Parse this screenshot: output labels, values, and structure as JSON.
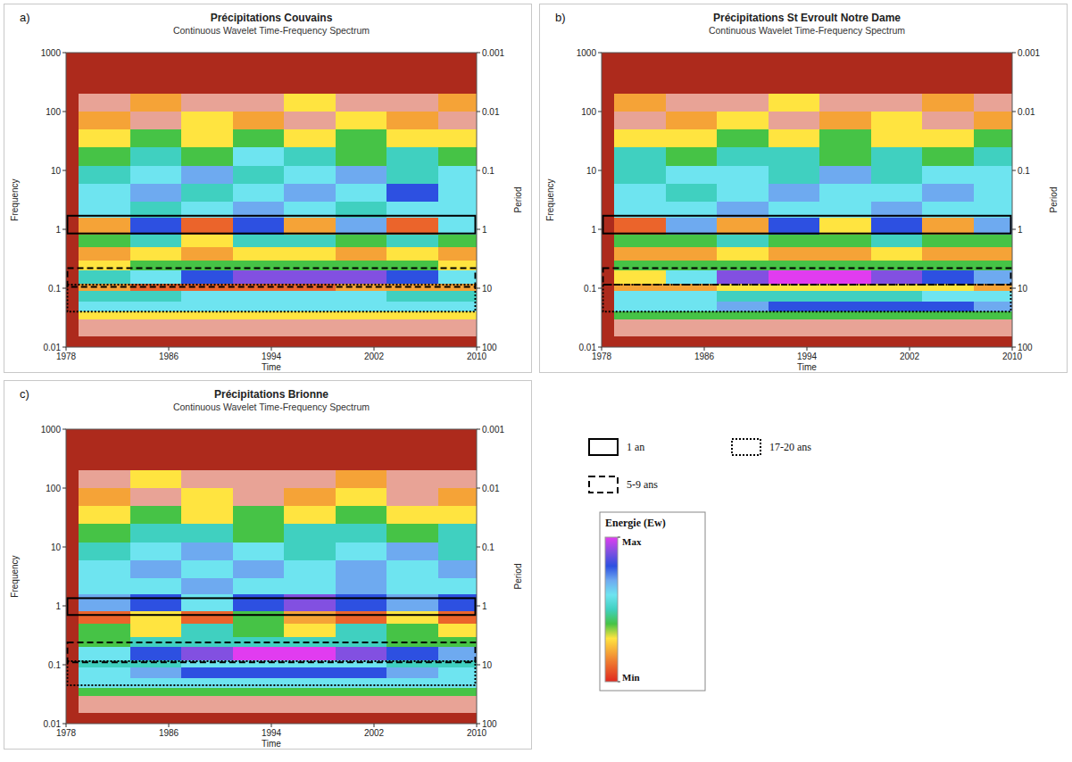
{
  "chart_data": [
    {
      "type": "heatmap",
      "panel_label": "a)",
      "title": "Précipitations Couvains",
      "subtitle": "Continuous Wavelet Time-Frequency Spectrum",
      "x_label": "Time",
      "y_label": "Frequency",
      "y2_label": "Period",
      "log": "y",
      "xlim": [
        1978,
        2010
      ],
      "xticks": [
        1978,
        1986,
        1994,
        2002,
        2010
      ],
      "ylim": [
        0.01,
        1000
      ],
      "yticks": [
        0.01,
        0.1,
        1,
        10,
        100,
        1000
      ],
      "y2lim": [
        100,
        0.001
      ],
      "y2ticks": [
        100,
        10,
        1,
        0.1,
        0.01,
        0.001
      ],
      "x": [
        1979,
        1983,
        1987,
        1991,
        1995,
        1999,
        2003,
        2007,
        2010
      ],
      "y": [
        0.015,
        0.03,
        0.04,
        0.06,
        0.09,
        0.12,
        0.2,
        0.3,
        0.5,
        0.8,
        1.6,
        3,
        6,
        12,
        25,
        50,
        100,
        200
      ],
      "cells": [
        [
          null,
          null,
          null,
          null,
          null,
          null,
          null,
          null
        ],
        [
          3,
          3,
          3,
          3,
          3,
          3,
          3,
          3
        ],
        [
          6,
          6,
          6,
          6,
          6,
          6,
          6,
          6
        ],
        [
          5,
          5,
          6,
          6,
          6,
          6,
          5,
          5
        ],
        [
          2,
          1,
          1,
          1,
          1,
          2,
          2,
          2
        ],
        [
          5,
          6,
          8,
          9,
          9,
          9,
          8,
          6
        ],
        [
          3,
          4,
          4,
          4,
          4,
          4,
          4,
          3
        ],
        [
          2,
          3,
          2,
          3,
          3,
          2,
          3,
          2
        ],
        [
          4,
          5,
          3,
          5,
          5,
          4,
          5,
          4
        ],
        [
          2,
          8,
          1,
          8,
          2,
          7,
          1,
          6
        ],
        [
          6,
          5,
          6,
          7,
          6,
          5,
          6,
          6
        ],
        [
          6,
          7,
          5,
          6,
          7,
          6,
          8,
          6
        ],
        [
          5,
          6,
          7,
          5,
          6,
          7,
          5,
          6
        ],
        [
          4,
          5,
          4,
          6,
          5,
          4,
          5,
          4
        ],
        [
          3,
          4,
          3,
          4,
          3,
          4,
          3,
          3
        ],
        [
          2,
          null,
          3,
          2,
          null,
          3,
          2,
          null
        ],
        [
          null,
          2,
          null,
          null,
          3,
          null,
          null,
          2
        ]
      ],
      "bands": [
        {
          "name": "1 an",
          "line_style": "solid",
          "y": [
            0.85,
            1.7
          ]
        },
        {
          "name": "5-9 ans",
          "line_style": "dashed",
          "y": [
            0.105,
            0.22
          ]
        },
        {
          "name": "17-20 ans",
          "line_style": "dotted",
          "y": [
            0.04,
            0.115
          ]
        }
      ]
    },
    {
      "type": "heatmap",
      "panel_label": "b)",
      "title": "Précipitations St Evroult Notre Dame",
      "subtitle": "Continuous Wavelet Time-Frequency Spectrum",
      "x_label": "Time",
      "y_label": "Frequency",
      "y2_label": "Period",
      "log": "y",
      "xlim": [
        1978,
        2010
      ],
      "xticks": [
        1978,
        1986,
        1994,
        2002,
        2010
      ],
      "ylim": [
        0.01,
        1000
      ],
      "yticks": [
        0.01,
        0.1,
        1,
        10,
        100,
        1000
      ],
      "y2lim": [
        100,
        0.001
      ],
      "y2ticks": [
        100,
        10,
        1,
        0.1,
        0.01,
        0.001
      ],
      "x": [
        1979,
        1983,
        1987,
        1991,
        1995,
        1999,
        2003,
        2007,
        2010
      ],
      "y": [
        0.015,
        0.03,
        0.04,
        0.06,
        0.09,
        0.12,
        0.2,
        0.3,
        0.5,
        0.8,
        1.6,
        3,
        6,
        12,
        25,
        50,
        100,
        200
      ],
      "cells": [
        [
          null,
          null,
          null,
          null,
          null,
          null,
          null,
          null
        ],
        [
          4,
          4,
          4,
          4,
          4,
          4,
          4,
          4
        ],
        [
          6,
          6,
          7,
          8,
          8,
          8,
          8,
          7
        ],
        [
          6,
          6,
          5,
          5,
          5,
          5,
          6,
          6
        ],
        [
          2,
          2,
          3,
          3,
          3,
          3,
          3,
          2
        ],
        [
          3,
          6,
          9,
          10,
          10,
          9,
          8,
          7
        ],
        [
          4,
          4,
          4,
          4,
          4,
          4,
          4,
          4
        ],
        [
          2,
          2,
          3,
          2,
          2,
          3,
          2,
          2
        ],
        [
          4,
          4,
          5,
          4,
          4,
          5,
          4,
          4
        ],
        [
          1,
          7,
          2,
          8,
          3,
          8,
          2,
          7
        ],
        [
          6,
          6,
          7,
          6,
          6,
          7,
          6,
          6
        ],
        [
          6,
          5,
          6,
          7,
          6,
          6,
          7,
          6
        ],
        [
          5,
          6,
          6,
          5,
          7,
          5,
          6,
          6
        ],
        [
          5,
          4,
          5,
          5,
          4,
          5,
          4,
          5
        ],
        [
          3,
          3,
          4,
          3,
          4,
          3,
          3,
          4
        ],
        [
          null,
          2,
          3,
          null,
          2,
          3,
          null,
          2
        ],
        [
          2,
          null,
          null,
          3,
          null,
          null,
          2,
          null
        ]
      ],
      "bands": [
        {
          "name": "1 an",
          "line_style": "solid",
          "y": [
            0.85,
            1.7
          ]
        },
        {
          "name": "5-9 ans",
          "line_style": "dashed",
          "y": [
            0.115,
            0.22
          ]
        },
        {
          "name": "17-20 ans",
          "line_style": "dotted",
          "y": [
            0.04,
            0.115
          ]
        }
      ]
    },
    {
      "type": "heatmap",
      "panel_label": "c)",
      "title": "Précipitations Brionne",
      "subtitle": "Continuous Wavelet Time-Frequency Spectrum",
      "x_label": "Time",
      "y_label": "Frequency",
      "y2_label": "Period",
      "log": "y",
      "xlim": [
        1978,
        2010
      ],
      "xticks": [
        1978,
        1986,
        1994,
        2002,
        2010
      ],
      "ylim": [
        0.01,
        1000
      ],
      "yticks": [
        0.01,
        0.1,
        1,
        10,
        100,
        1000
      ],
      "y2lim": [
        100,
        0.001
      ],
      "y2ticks": [
        100,
        10,
        1,
        0.1,
        0.01,
        0.001
      ],
      "x": [
        1979,
        1983,
        1987,
        1991,
        1995,
        1999,
        2003,
        2007,
        2010
      ],
      "y": [
        0.015,
        0.03,
        0.04,
        0.06,
        0.09,
        0.12,
        0.2,
        0.3,
        0.5,
        0.8,
        1.6,
        3,
        6,
        12,
        25,
        50,
        100,
        200
      ],
      "cells": [
        [
          null,
          null,
          null,
          null,
          null,
          null,
          null,
          null
        ],
        [
          4,
          4,
          4,
          4,
          4,
          4,
          4,
          4
        ],
        [
          6,
          6,
          6,
          6,
          6,
          6,
          6,
          6
        ],
        [
          6,
          7,
          8,
          8,
          8,
          8,
          7,
          6
        ],
        [
          5,
          5,
          6,
          6,
          6,
          6,
          5,
          5
        ],
        [
          6,
          8,
          9,
          10,
          10,
          9,
          8,
          7
        ],
        [
          4,
          5,
          5,
          5,
          5,
          5,
          4,
          4
        ],
        [
          4,
          3,
          5,
          4,
          3,
          5,
          4,
          3
        ],
        [
          1,
          3,
          1,
          4,
          2,
          1,
          3,
          1
        ],
        [
          7,
          8,
          6,
          8,
          9,
          8,
          7,
          8
        ],
        [
          6,
          6,
          7,
          6,
          6,
          7,
          6,
          6
        ],
        [
          6,
          7,
          6,
          7,
          6,
          7,
          6,
          7
        ],
        [
          5,
          6,
          7,
          6,
          5,
          6,
          7,
          5
        ],
        [
          4,
          5,
          5,
          4,
          5,
          5,
          4,
          5
        ],
        [
          3,
          4,
          3,
          4,
          3,
          4,
          3,
          3
        ],
        [
          2,
          null,
          3,
          null,
          2,
          3,
          null,
          2
        ],
        [
          null,
          3,
          null,
          null,
          null,
          2,
          null,
          null
        ]
      ],
      "bands": [
        {
          "name": "1 an",
          "line_style": "solid",
          "y": [
            0.7,
            1.35
          ]
        },
        {
          "name": "5-9 ans",
          "line_style": "dashed",
          "y": [
            0.11,
            0.24
          ]
        },
        {
          "name": "17-20 ans",
          "line_style": "dotted",
          "y": [
            0.045,
            0.115
          ]
        }
      ]
    }
  ],
  "colorbar": {
    "title": "Energie (Ew)",
    "range": [
      0,
      10
    ],
    "ticks": [
      {
        "value": 10,
        "label": "Max"
      },
      {
        "value": 0,
        "label": "Min"
      }
    ]
  }
}
